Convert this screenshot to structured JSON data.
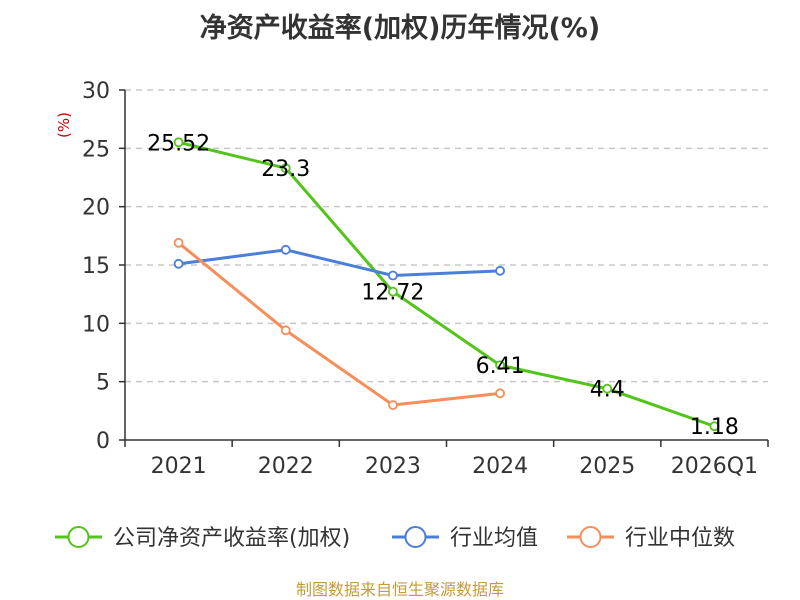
{
  "title": "净资产收益率(加权)历年情况(%)",
  "footer": "制图数据来自恒生聚源数据库",
  "chart_data": {
    "type": "line",
    "title": "净资产收益率(加权)历年情况(%)",
    "ylabel": "(%)",
    "xlabel": "",
    "ylim": [
      0,
      30
    ],
    "yticks": [
      0,
      5,
      10,
      15,
      20,
      25,
      30
    ],
    "grid": true,
    "legend_position": "bottom",
    "categories": [
      "2021",
      "2022",
      "2023",
      "2024",
      "2025",
      "2026Q1"
    ],
    "series": [
      {
        "name": "公司净资产收益率(加权)",
        "color": "#52c41a",
        "values": [
          25.52,
          23.3,
          12.72,
          6.41,
          4.4,
          1.18
        ],
        "labels": [
          "25.52",
          "23.3",
          "12.72",
          "6.41",
          "4.4",
          "1.18"
        ]
      },
      {
        "name": "行业均值",
        "color": "#4a7fd9",
        "values": [
          15.1,
          16.3,
          14.1,
          14.5,
          null,
          null
        ]
      },
      {
        "name": "行业中位数",
        "color": "#f58e5a",
        "values": [
          16.9,
          9.4,
          3.0,
          4.0,
          null,
          null
        ]
      }
    ]
  }
}
